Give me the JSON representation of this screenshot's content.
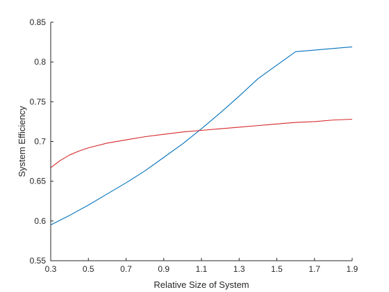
{
  "chart_data": {
    "type": "line",
    "title": "",
    "xlabel": "Relative Size of System",
    "ylabel": "System Efficiency",
    "xlim": [
      0.3,
      1.9
    ],
    "ylim": [
      0.55,
      0.85
    ],
    "xticks": [
      0.3,
      0.5,
      0.7,
      0.9,
      1.1,
      1.3,
      1.5,
      1.7,
      1.9
    ],
    "yticks": [
      0.55,
      0.6,
      0.65,
      0.7,
      0.75,
      0.8,
      0.85
    ],
    "xtick_labels": [
      "0.3",
      "0.5",
      "0.7",
      "0.9",
      "1.1",
      "1.3",
      "1.5",
      "1.7",
      "1.9"
    ],
    "ytick_labels": [
      "0.55",
      "0.6",
      "0.65",
      "0.7",
      "0.75",
      "0.8",
      "0.85"
    ],
    "grid": false,
    "legend": "none",
    "series": [
      {
        "color": "#0072BD",
        "x": [
          0.3,
          0.4,
          0.5,
          0.6,
          0.7,
          0.8,
          0.9,
          1.0,
          1.1,
          1.2,
          1.3,
          1.4,
          1.5,
          1.6,
          1.7,
          1.8,
          1.9
        ],
        "y": [
          0.595,
          0.607,
          0.62,
          0.634,
          0.648,
          0.663,
          0.68,
          0.697,
          0.716,
          0.736,
          0.757,
          0.779,
          0.796,
          0.813,
          0.815,
          0.817,
          0.819
        ]
      },
      {
        "color": "#D62728",
        "x": [
          0.3,
          0.35,
          0.4,
          0.45,
          0.5,
          0.6,
          0.7,
          0.8,
          0.9,
          1.0,
          1.1,
          1.2,
          1.3,
          1.4,
          1.5,
          1.6,
          1.7,
          1.8,
          1.9
        ],
        "y": [
          0.667,
          0.676,
          0.683,
          0.688,
          0.692,
          0.698,
          0.702,
          0.706,
          0.709,
          0.712,
          0.714,
          0.716,
          0.718,
          0.72,
          0.722,
          0.724,
          0.725,
          0.727,
          0.728
        ]
      }
    ]
  }
}
